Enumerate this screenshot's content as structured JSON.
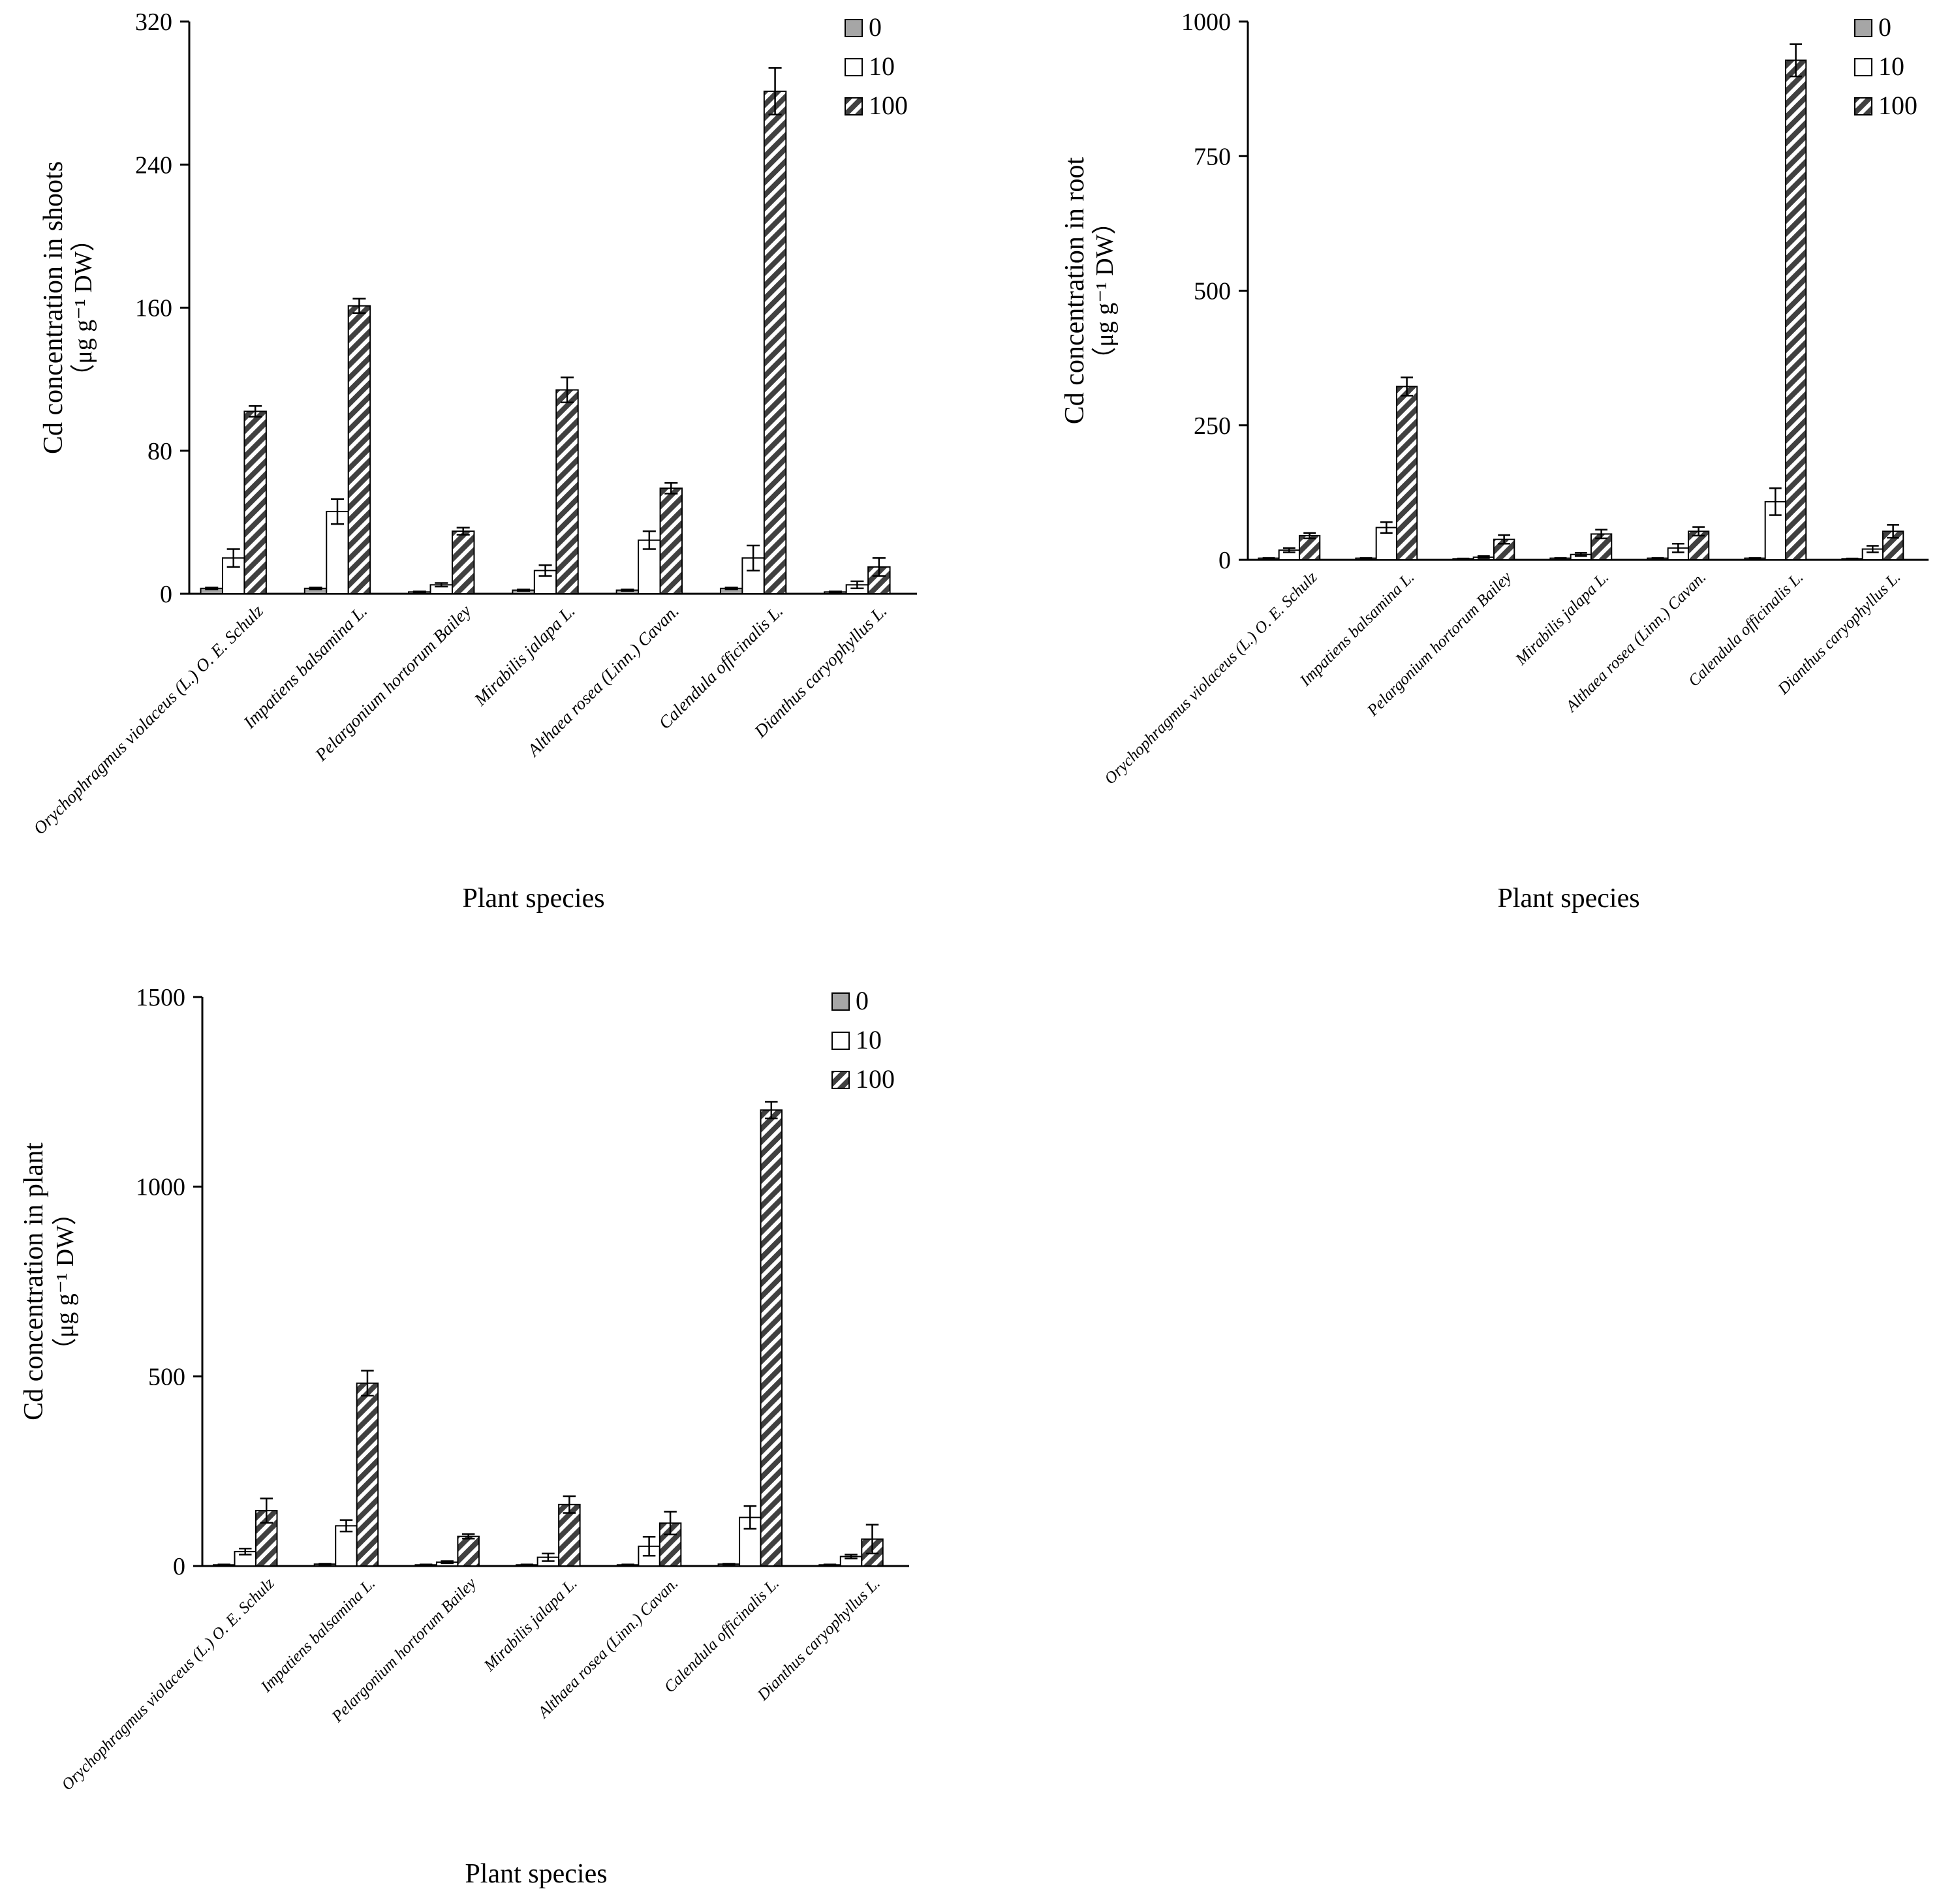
{
  "chart_data": [
    {
      "type": "bar",
      "id": "shoots",
      "categories": [
        "Orychophragmus violaceus (L.) O. E. Schulz",
        "Impatiens balsamina L.",
        "Pelargonium hortorum Bailey",
        "Mirabilis jalapa L.",
        "Althaea rosea (Linn.) Cavan.",
        "Calendula officinalis L.",
        "Dianthus caryophyllus L."
      ],
      "series": [
        {
          "name": "0",
          "values": [
            3,
            3,
            1,
            2,
            2,
            3,
            1
          ],
          "errors": [
            0.5,
            0.5,
            0.3,
            0.4,
            0.4,
            0.5,
            0.3
          ]
        },
        {
          "name": "10",
          "values": [
            20,
            46,
            5,
            13,
            30,
            20,
            5
          ],
          "errors": [
            5,
            7,
            1,
            3,
            5,
            7,
            2
          ]
        },
        {
          "name": "100",
          "values": [
            102,
            161,
            35,
            114,
            59,
            281,
            15
          ],
          "errors": [
            3,
            4,
            2,
            7,
            3,
            13,
            5
          ]
        }
      ],
      "title": "",
      "xlabel": "Plant species",
      "ylabel": "Cd concentration in shoots",
      "yunit": "（μg g⁻¹ DW）",
      "ylim": [
        0,
        320
      ],
      "yticks": [
        "0",
        "80",
        "160",
        "240",
        "320"
      ],
      "legend_position": "top-right"
    },
    {
      "type": "bar",
      "id": "root",
      "categories": [
        "Orychophragmus violaceus (L.) O. E. Schulz",
        "Impatiens balsamina L.",
        "Pelargonium hortorum Bailey",
        "Mirabilis jalapa L.",
        "Althaea rosea (Linn.) Cavan.",
        "Calendula officinalis L.",
        "Dianthus caryophyllus L."
      ],
      "series": [
        {
          "name": "0",
          "values": [
            3,
            3,
            2,
            3,
            3,
            3,
            2
          ],
          "errors": [
            0.5,
            0.5,
            0.5,
            0.5,
            0.5,
            0.5,
            0.5
          ]
        },
        {
          "name": "10",
          "values": [
            18,
            60,
            5,
            10,
            22,
            108,
            20
          ],
          "errors": [
            4,
            10,
            2,
            3,
            8,
            25,
            6
          ]
        },
        {
          "name": "100",
          "values": [
            45,
            322,
            38,
            48,
            53,
            928,
            53
          ],
          "errors": [
            5,
            17,
            8,
            8,
            8,
            30,
            12
          ]
        }
      ],
      "title": "",
      "xlabel": "Plant species",
      "ylabel": "Cd concentration in root",
      "yunit": "（μg g⁻¹ DW）",
      "ylim": [
        0,
        1000
      ],
      "yticks": [
        "0",
        "250",
        "500",
        "750",
        "1000"
      ],
      "legend_position": "top-right"
    },
    {
      "type": "bar",
      "id": "plant",
      "categories": [
        "Orychophragmus violaceus (L.) O. E. Schulz",
        "Impatiens balsamina L.",
        "Pelargonium hortorum Bailey",
        "Mirabilis jalapa L.",
        "Althaea rosea (Linn.) Cavan.",
        "Calendula officinalis L.",
        "Dianthus caryophyllus L."
      ],
      "series": [
        {
          "name": "0",
          "values": [
            3,
            5,
            3,
            3,
            3,
            5,
            3
          ],
          "errors": [
            1,
            1,
            1,
            1,
            1,
            1,
            1
          ]
        },
        {
          "name": "10",
          "values": [
            38,
            106,
            10,
            23,
            52,
            128,
            25
          ],
          "errors": [
            8,
            15,
            3,
            10,
            25,
            30,
            5
          ]
        },
        {
          "name": "100",
          "values": [
            146,
            482,
            78,
            162,
            113,
            1202,
            71
          ],
          "errors": [
            32,
            33,
            6,
            22,
            30,
            22,
            38
          ]
        }
      ],
      "title": "",
      "xlabel": "Plant species",
      "ylabel": "Cd concentration in plant",
      "yunit": "（μg g⁻¹ DW）",
      "ylim": [
        0,
        1500
      ],
      "yticks": [
        "0",
        "500",
        "1000",
        "1500"
      ],
      "legend_position": "top-right"
    }
  ],
  "colors": {
    "series_0_fill": "#a6a6a6",
    "series_10_fill": "#ffffff",
    "series_100_dark": "#404040",
    "series_100_light": "#ffffff",
    "axis": "#000000"
  }
}
